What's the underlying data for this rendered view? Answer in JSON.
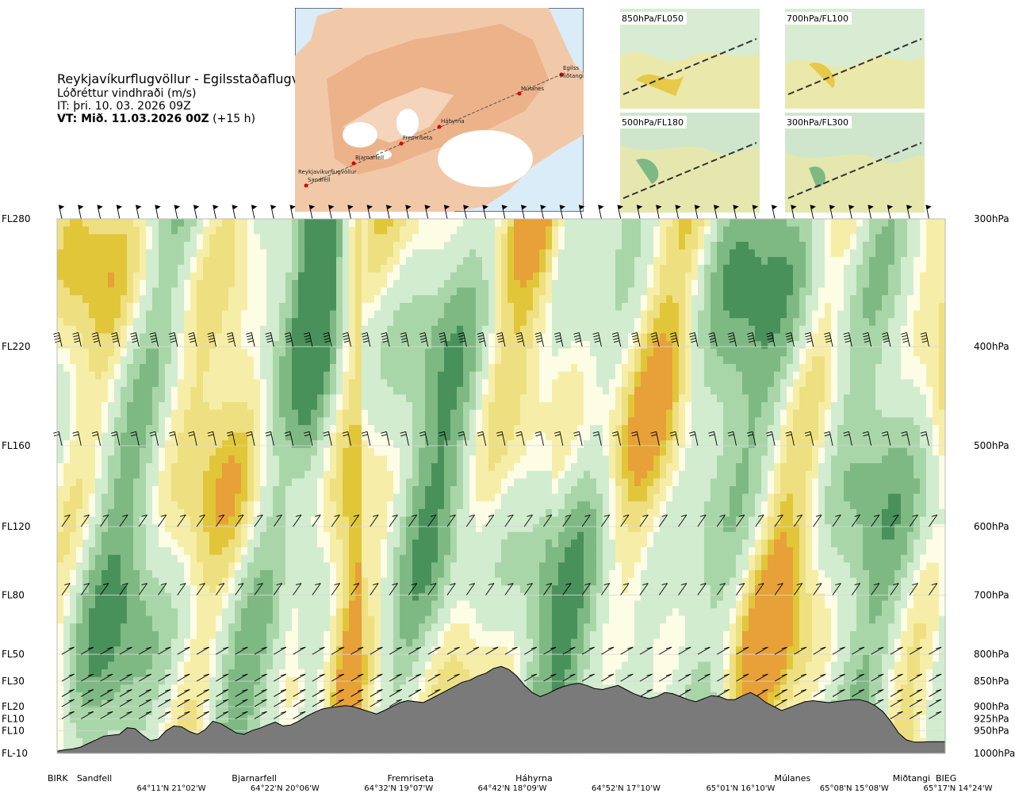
{
  "header": {
    "route": "Reykjavíkurflugvöllur - Egilsstaðaflugvöllur",
    "variable": "Lóðréttur vindhraði (m/s)",
    "init_time": "IT: þri. 10. 03. 2026 09Z",
    "valid_prefix": "VT: Mið. 11.03.2026 00Z",
    "valid_offset": "(+15 h)"
  },
  "map": {
    "stations": [
      "Reykjavíkurflugvöllur",
      "Sandfell",
      "Bjarnarfell",
      "Fremriseta",
      "Háhyrna",
      "Múlanes",
      "Egilss",
      "Miðtangi"
    ]
  },
  "minimaps": [
    {
      "label": "850hPa/FL050"
    },
    {
      "label": "700hPa/FL100"
    },
    {
      "label": "500hPa/FL180"
    },
    {
      "label": "300hPa/FL300"
    }
  ],
  "chart_data": {
    "type": "heatmap",
    "title": "Lóðréttur vindhraði (m/s)",
    "levels": [
      {
        "fl": "FL280",
        "hpa": "300hPa",
        "p": 300
      },
      {
        "fl": "FL220",
        "hpa": "400hPa",
        "p": 400
      },
      {
        "fl": "FL160",
        "hpa": "500hPa",
        "p": 500
      },
      {
        "fl": "FL120",
        "hpa": "600hPa",
        "p": 600
      },
      {
        "fl": "FL80",
        "hpa": "700hPa",
        "p": 700
      },
      {
        "fl": "FL50",
        "hpa": "800hPa",
        "p": 800
      },
      {
        "fl": "FL30",
        "hpa": "850hPa",
        "p": 850
      },
      {
        "fl": "FL20",
        "hpa": "900hPa",
        "p": 900
      },
      {
        "fl": "FL10",
        "hpa": "925hPa",
        "p": 925
      },
      {
        "fl": "FL10",
        "hpa": "950hPa",
        "p": 950
      },
      {
        "fl": "FL-10",
        "hpa": "1000hPa",
        "p": 1000
      }
    ],
    "stations": [
      {
        "name": "BIRK",
        "frac": 0.0
      },
      {
        "name": "Sandfell",
        "frac": 0.042
      },
      {
        "name": "Bjarnarfell",
        "frac": 0.222
      },
      {
        "name": "Fremriseta",
        "frac": 0.398
      },
      {
        "name": "Háhyrna",
        "frac": 0.537
      },
      {
        "name": "Múlanes",
        "frac": 0.828
      },
      {
        "name": "Miðtangi",
        "frac": 0.962
      },
      {
        "name": "BIEG",
        "frac": 1.0
      }
    ],
    "coords": [
      {
        "label": "64°11'N 21°02'W",
        "frac": 0.128
      },
      {
        "label": "64°22'N 20°06'W",
        "frac": 0.256
      },
      {
        "label": "64°32'N 19°07'W",
        "frac": 0.384
      },
      {
        "label": "64°42'N 18°09'W",
        "frac": 0.512
      },
      {
        "label": "64°52'N 17°10'W",
        "frac": 0.64
      },
      {
        "label": "65°01'N 16°10'W",
        "frac": 0.769
      },
      {
        "label": "65°08'N 15°08'W",
        "frac": 0.897
      },
      {
        "label": "65°17'N 14°24'W",
        "frac": 1.025
      }
    ],
    "terrain_hpa": [
      995,
      992,
      990,
      986,
      978,
      970,
      962,
      960,
      958,
      944,
      946,
      960,
      972,
      968,
      950,
      940,
      942,
      952,
      958,
      948,
      930,
      935,
      945,
      955,
      958,
      950,
      945,
      938,
      932,
      940,
      938,
      930,
      920,
      912,
      905,
      902,
      900,
      898,
      900,
      905,
      910,
      915,
      908,
      900,
      892,
      888,
      890,
      892,
      884,
      876,
      868,
      860,
      852,
      848,
      840,
      835,
      826,
      822,
      828,
      840,
      858,
      872,
      880,
      874,
      866,
      860,
      856,
      854,
      858,
      864,
      866,
      862,
      858,
      866,
      874,
      880,
      884,
      880,
      872,
      874,
      880,
      886,
      890,
      884,
      878,
      880,
      886,
      886,
      878,
      872,
      880,
      892,
      900,
      908,
      902,
      896,
      890,
      888,
      890,
      892,
      890,
      888,
      886,
      886,
      890,
      898,
      910,
      930,
      955,
      970,
      975,
      975,
      974,
      974,
      974
    ],
    "colorscale": [
      {
        "threshold": "-1.0",
        "color": "#49915b"
      },
      {
        "threshold": "-0.5",
        "color": "#7eb984"
      },
      {
        "threshold": "-0.25",
        "color": "#a9d6a8"
      },
      {
        "threshold": "-0.1",
        "color": "#d2ecd0"
      },
      {
        "threshold": "0.1",
        "color": "#fdfde6"
      },
      {
        "threshold": "0.25",
        "color": "#f6eea8"
      },
      {
        "threshold": "0.5",
        "color": "#eee080"
      },
      {
        "threshold": "1.0",
        "color": "#e2c63a"
      },
      {
        "threshold": "2.0",
        "color": "#e8a038"
      }
    ],
    "xlabel": "",
    "ylabel": ""
  }
}
